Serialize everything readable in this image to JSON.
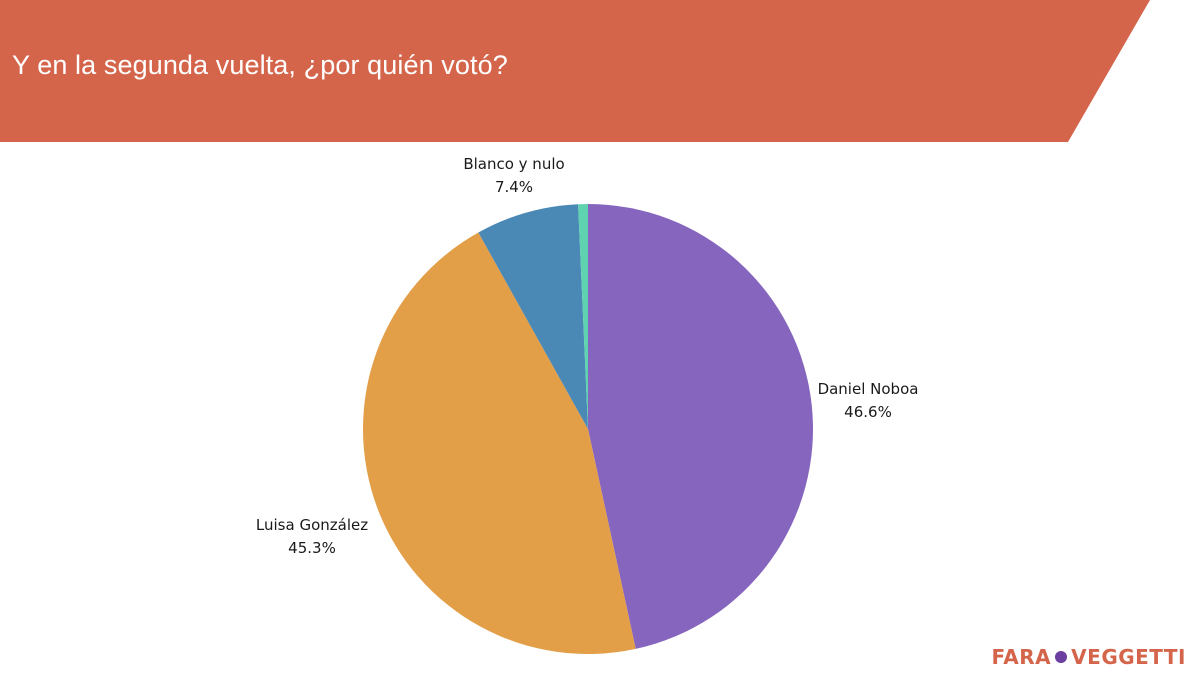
{
  "header": {
    "title": "Y en la segunda vuelta, ¿por quién votó?",
    "band_color": "#D4654A"
  },
  "chart_data": {
    "type": "pie",
    "title": "",
    "start_angle_deg": 0,
    "direction": "clockwise",
    "slices": [
      {
        "label": "Daniel Noboa",
        "value": 46.6,
        "display": "46.6%",
        "color": "#8565BD"
      },
      {
        "label": "Luisa González",
        "value": 45.3,
        "display": "45.3%",
        "color": "#E39E48"
      },
      {
        "label": "Blanco y nulo",
        "value": 7.4,
        "display": "7.4%",
        "color": "#4A88B6"
      },
      {
        "label": "",
        "value": 0.7,
        "display": "",
        "color": "#5FD3B0"
      }
    ]
  },
  "brand": {
    "left": "FARA",
    "right": "VEGGETTI",
    "left_color": "#D4654A",
    "dot_color": "#6A3FA0",
    "right_color": "#D4654A"
  }
}
